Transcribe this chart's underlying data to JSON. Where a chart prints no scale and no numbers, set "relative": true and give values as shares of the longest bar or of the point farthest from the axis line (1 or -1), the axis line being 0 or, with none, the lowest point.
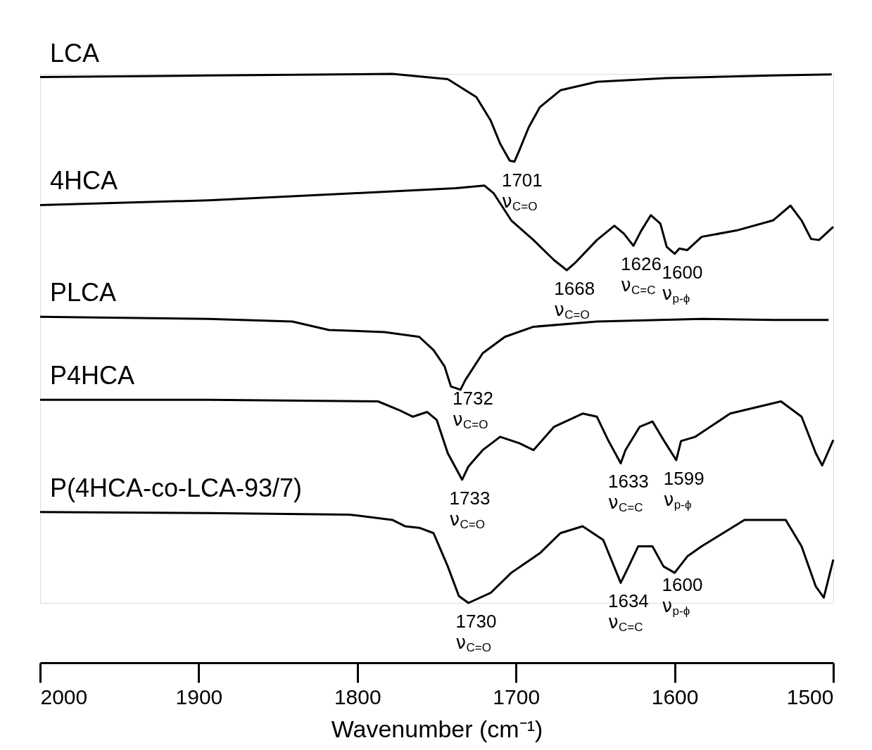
{
  "chart_data": {
    "type": "line",
    "relative": true,
    "xlabel": "Wavenumber (cm⁻¹)",
    "xlim": [
      2000,
      1500
    ],
    "xticks": [
      2000,
      1900,
      1800,
      1700,
      1600,
      1500
    ],
    "grid": false,
    "legend": false,
    "marker": "none",
    "line_style": "solid",
    "series": [
      {
        "name": "LCA",
        "color": "#000000",
        "x": [
          2000,
          1894,
          1778,
          1743,
          1725,
          1716,
          1710,
          1704,
          1701,
          1698,
          1692,
          1685,
          1672,
          1649,
          1605,
          1538,
          1501
        ],
        "values": [
          0.994,
          0.997,
          1.0,
          0.99,
          0.956,
          0.912,
          0.868,
          0.836,
          0.834,
          0.855,
          0.899,
          0.937,
          0.969,
          0.985,
          0.992,
          0.997,
          0.999
        ]
      },
      {
        "name": "4HCA",
        "color": "#000000",
        "x": [
          2000,
          1894,
          1805,
          1738,
          1720,
          1714,
          1703,
          1689,
          1676,
          1668,
          1663,
          1649,
          1638,
          1632,
          1626,
          1621,
          1615,
          1609,
          1605,
          1600,
          1597,
          1592,
          1583,
          1561,
          1538,
          1527,
          1520,
          1514,
          1509,
          1500
        ],
        "values": [
          0.752,
          0.761,
          0.774,
          0.784,
          0.789,
          0.774,
          0.723,
          0.686,
          0.648,
          0.629,
          0.642,
          0.686,
          0.713,
          0.698,
          0.675,
          0.704,
          0.733,
          0.717,
          0.673,
          0.66,
          0.67,
          0.667,
          0.692,
          0.704,
          0.723,
          0.751,
          0.723,
          0.688,
          0.686,
          0.711
        ]
      },
      {
        "name": "PLCA",
        "color": "#000000",
        "x": [
          2000,
          1894,
          1841,
          1818,
          1783,
          1761,
          1752,
          1745,
          1741,
          1735,
          1732,
          1721,
          1707,
          1689,
          1649,
          1583,
          1538,
          1503
        ],
        "values": [
          0.541,
          0.537,
          0.532,
          0.516,
          0.512,
          0.503,
          0.478,
          0.447,
          0.409,
          0.403,
          0.421,
          0.472,
          0.503,
          0.522,
          0.532,
          0.537,
          0.535,
          0.535
        ]
      },
      {
        "name": "P4HCA",
        "color": "#000000",
        "x": [
          2000,
          1894,
          1787,
          1774,
          1765,
          1756,
          1750,
          1743,
          1734,
          1730,
          1721,
          1710,
          1698,
          1689,
          1676,
          1658,
          1649,
          1642,
          1634,
          1631,
          1622,
          1614,
          1607,
          1599,
          1596,
          1587,
          1565,
          1533,
          1520,
          1511,
          1507,
          1500
        ],
        "values": [
          0.384,
          0.384,
          0.381,
          0.365,
          0.352,
          0.361,
          0.346,
          0.283,
          0.233,
          0.258,
          0.289,
          0.314,
          0.302,
          0.289,
          0.333,
          0.358,
          0.352,
          0.308,
          0.264,
          0.289,
          0.333,
          0.343,
          0.308,
          0.27,
          0.306,
          0.314,
          0.358,
          0.381,
          0.352,
          0.283,
          0.26,
          0.308
        ]
      },
      {
        "name": "P(4HCA-co-LCA-93/7)",
        "color": "#000000",
        "x": [
          2000,
          1894,
          1805,
          1778,
          1770,
          1761,
          1752,
          1743,
          1736,
          1730,
          1716,
          1703,
          1685,
          1672,
          1658,
          1645,
          1634,
          1629,
          1623,
          1614,
          1607,
          1600,
          1592,
          1583,
          1556,
          1530,
          1520,
          1511,
          1506,
          1500
        ],
        "values": [
          0.172,
          0.17,
          0.167,
          0.157,
          0.145,
          0.142,
          0.132,
          0.069,
          0.013,
          0.0,
          0.019,
          0.057,
          0.094,
          0.132,
          0.145,
          0.119,
          0.038,
          0.069,
          0.107,
          0.107,
          0.069,
          0.057,
          0.088,
          0.107,
          0.157,
          0.157,
          0.107,
          0.031,
          0.01,
          0.082
        ]
      }
    ],
    "annotations": [
      {
        "text": "1701 ν$_{C=O}$",
        "x": 1701,
        "y": 0.834
      },
      {
        "text": "1668 ν$_{C=O}$",
        "x": 1668,
        "y": 0.629
      },
      {
        "text": "1626 ν$_{C=C}$",
        "x": 1626,
        "y": 0.675
      },
      {
        "text": "1600 ν$_{p-ϕ}$",
        "x": 1600,
        "y": 0.66
      },
      {
        "text": "1732 ν$_{C=O}$",
        "x": 1732,
        "y": 0.421
      },
      {
        "text": "1733 ν$_{C=O}$",
        "x": 1734,
        "y": 0.233
      },
      {
        "text": "1633 ν$_{C=C}$",
        "x": 1634,
        "y": 0.264
      },
      {
        "text": "1599 ν$_{p-ϕ}$",
        "x": 1599,
        "y": 0.27
      },
      {
        "text": "1730 ν$_{C=O}$",
        "x": 1730,
        "y": 0.0
      },
      {
        "text": "1634 ν$_{C=C}$",
        "x": 1634,
        "y": 0.038
      },
      {
        "text": "1600 ν$_{p-ϕ}$",
        "x": 1600,
        "y": 0.069
      }
    ]
  }
}
